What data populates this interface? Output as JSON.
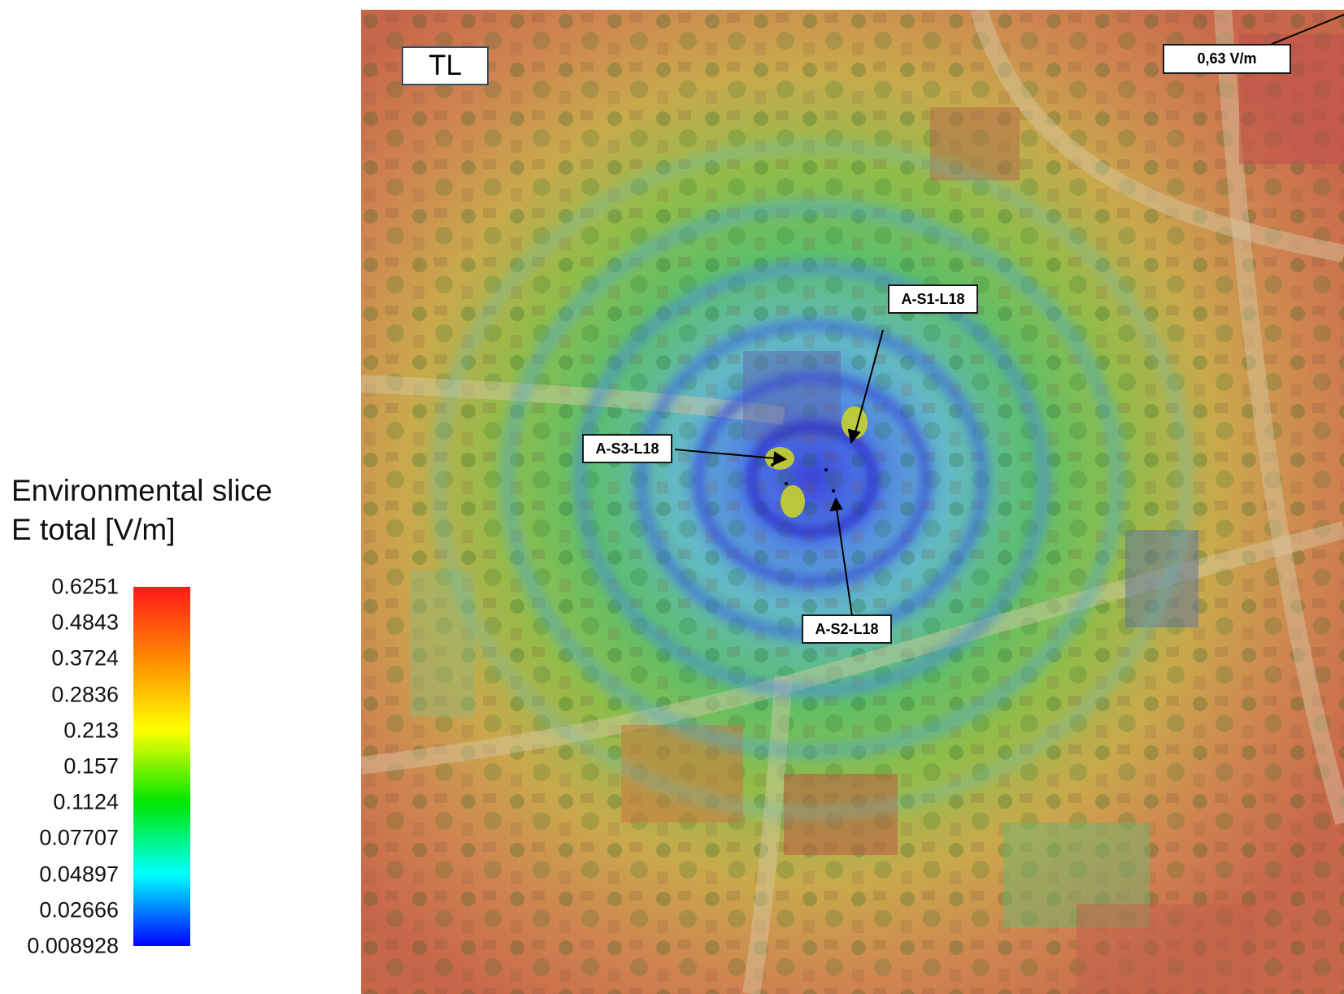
{
  "panel_label": "TL",
  "max_label": "0,63 V/m",
  "antennas": [
    {
      "label": "A-S1-L18"
    },
    {
      "label": "A-S2-L18"
    },
    {
      "label": "A-S3-L18"
    }
  ],
  "legend": {
    "title_line1": "Environmental slice",
    "title_line2": "E total [V/m]",
    "ticks": [
      "0.6251",
      "0.4843",
      "0.3724",
      "0.2836",
      "0.213",
      "0.157",
      "0.1124",
      "0.07707",
      "0.04897",
      "0.02666",
      "0.008928"
    ],
    "gradient_colors": [
      "#ff1a1a",
      "#ff8a00",
      "#ffff00",
      "#00e600",
      "#00ffff",
      "#0000ff"
    ]
  }
}
